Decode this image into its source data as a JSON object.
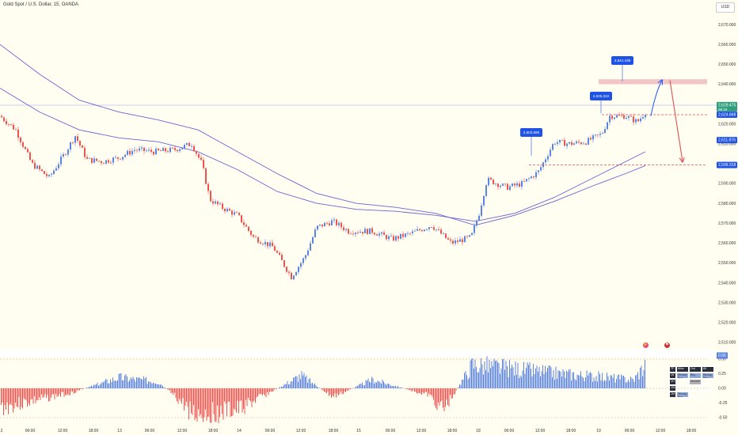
{
  "header": {
    "title": "Gold Spot / U.S. Dollar, 15, OANDA",
    "currency": "USD"
  },
  "icons": {
    "event_icon": "lightning-icon",
    "flag_icon": "us-flag-icon"
  },
  "colors": {
    "up": "#5b84e0",
    "down": "#ef5350",
    "ma_line": "#6e62d4",
    "level_line": "#e05050",
    "zone": "#f2c6c6",
    "arrow_up": "#2962ff",
    "arrow_down": "#e05050",
    "label_bg": "#1e53e5"
  },
  "chart_data": [
    {
      "type": "candlestick",
      "title": "Gold Spot / U.S. Dollar, 15, OANDA",
      "ylim": [
        2506,
        2680
      ],
      "y_ticks": [
        "2,670.000",
        "2,660.000",
        "2,650.000",
        "2,640.000",
        "2,630.000",
        "2,620.000",
        "2,610.000",
        "2,600.000",
        "2,590.000",
        "2,580.000",
        "2,570.000",
        "2,560.000",
        "2,550.000",
        "2,540.000",
        "2,530.000",
        "2,520.000",
        "2,510.000"
      ],
      "x_ticks": [
        "2",
        "06:00",
        "12:00",
        "18:00",
        "13",
        "06:00",
        "12:00",
        "18:00",
        "14",
        "06:00",
        "12:00",
        "18:00",
        "15",
        "06:00",
        "12:00",
        "18:00",
        "18",
        "06:00",
        "12:00",
        "18:00",
        "19",
        "06:00",
        "12:00",
        "18:00"
      ],
      "price_anchors": [
        [
          0,
          2624
        ],
        [
          20,
          2617
        ],
        [
          40,
          2600
        ],
        [
          62,
          2593
        ],
        [
          80,
          2604
        ],
        [
          95,
          2614
        ],
        [
          110,
          2602
        ],
        [
          130,
          2601
        ],
        [
          150,
          2603
        ],
        [
          170,
          2607
        ],
        [
          195,
          2606
        ],
        [
          220,
          2607
        ],
        [
          242,
          2610
        ],
        [
          255,
          2600
        ],
        [
          265,
          2582
        ],
        [
          280,
          2578
        ],
        [
          300,
          2574
        ],
        [
          320,
          2563
        ],
        [
          345,
          2558
        ],
        [
          368,
          2543
        ],
        [
          385,
          2553
        ],
        [
          400,
          2568
        ],
        [
          420,
          2571
        ],
        [
          440,
          2566
        ],
        [
          470,
          2566
        ],
        [
          495,
          2562
        ],
        [
          520,
          2565
        ],
        [
          545,
          2569
        ],
        [
          570,
          2560
        ],
        [
          595,
          2563
        ],
        [
          605,
          2575
        ],
        [
          615,
          2592
        ],
        [
          640,
          2588
        ],
        [
          660,
          2590
        ],
        [
          680,
          2596
        ],
        [
          700,
          2611
        ],
        [
          720,
          2610
        ],
        [
          740,
          2611
        ],
        [
          760,
          2615
        ],
        [
          770,
          2624
        ],
        [
          790,
          2624
        ],
        [
          805,
          2621
        ],
        [
          815,
          2626
        ]
      ],
      "ma_fast": [
        [
          0,
          2638
        ],
        [
          50,
          2626
        ],
        [
          100,
          2617
        ],
        [
          150,
          2613
        ],
        [
          200,
          2611
        ],
        [
          250,
          2606
        ],
        [
          300,
          2597
        ],
        [
          350,
          2586
        ],
        [
          400,
          2580
        ],
        [
          450,
          2577
        ],
        [
          500,
          2576
        ],
        [
          550,
          2574
        ],
        [
          600,
          2571
        ],
        [
          650,
          2575
        ],
        [
          700,
          2583
        ],
        [
          750,
          2593
        ],
        [
          790,
          2601
        ],
        [
          815,
          2606
        ]
      ],
      "ma_slow": [
        [
          0,
          2660
        ],
        [
          50,
          2645
        ],
        [
          100,
          2632
        ],
        [
          150,
          2626
        ],
        [
          200,
          2622
        ],
        [
          250,
          2617
        ],
        [
          300,
          2606
        ],
        [
          350,
          2595
        ],
        [
          400,
          2585
        ],
        [
          450,
          2580
        ],
        [
          500,
          2578
        ],
        [
          550,
          2575
        ],
        [
          600,
          2569
        ],
        [
          650,
          2574
        ],
        [
          700,
          2581
        ],
        [
          750,
          2589
        ],
        [
          790,
          2595
        ],
        [
          815,
          2599
        ]
      ],
      "last_price": "2,629.475",
      "last_price_sub": "08:19",
      "price_labels": [
        "2,624.668",
        "2,611.876",
        "2,599.318"
      ],
      "annotations": [
        "2,641.438",
        "2,625.322",
        "2,603.980"
      ],
      "levels": [
        2624.668,
        2599.318
      ],
      "zone": [
        2640,
        2642.5
      ],
      "forecast_up": {
        "from": 2624,
        "to": 2642
      },
      "forecast_down": {
        "from": 2642,
        "to": 2601
      }
    },
    {
      "type": "histogram",
      "ylim": [
        -0.75,
        0.75
      ],
      "y_ticks": [
        "0.50",
        "0.25",
        "0.00",
        "-0.25",
        "-0.50"
      ],
      "last_value": "0.56",
      "segments": [
        [
          0,
          -0.45
        ],
        [
          90,
          -0.1
        ],
        [
          150,
          0.25
        ],
        [
          200,
          0.15
        ],
        [
          245,
          -0.6
        ],
        [
          300,
          -0.5
        ],
        [
          380,
          0.3
        ],
        [
          420,
          -0.2
        ],
        [
          470,
          0.2
        ],
        [
          540,
          -0.15
        ],
        [
          560,
          -0.5
        ],
        [
          596,
          0.55
        ],
        [
          700,
          0.35
        ],
        [
          800,
          0.2
        ],
        [
          815,
          0.56
        ]
      ]
    }
  ],
  "table": {
    "headers": [
      "TF",
      "Mins",
      "Out",
      "All"
    ],
    "rows": [
      [
        "15",
        "Strong Buy",
        "Buy",
        "Strong Buy"
      ],
      [
        "1H",
        "",
        "Neutral",
        ""
      ],
      [
        "1W",
        "",
        "",
        ""
      ],
      [
        "1M",
        "Strong Buy",
        "",
        ""
      ]
    ]
  }
}
